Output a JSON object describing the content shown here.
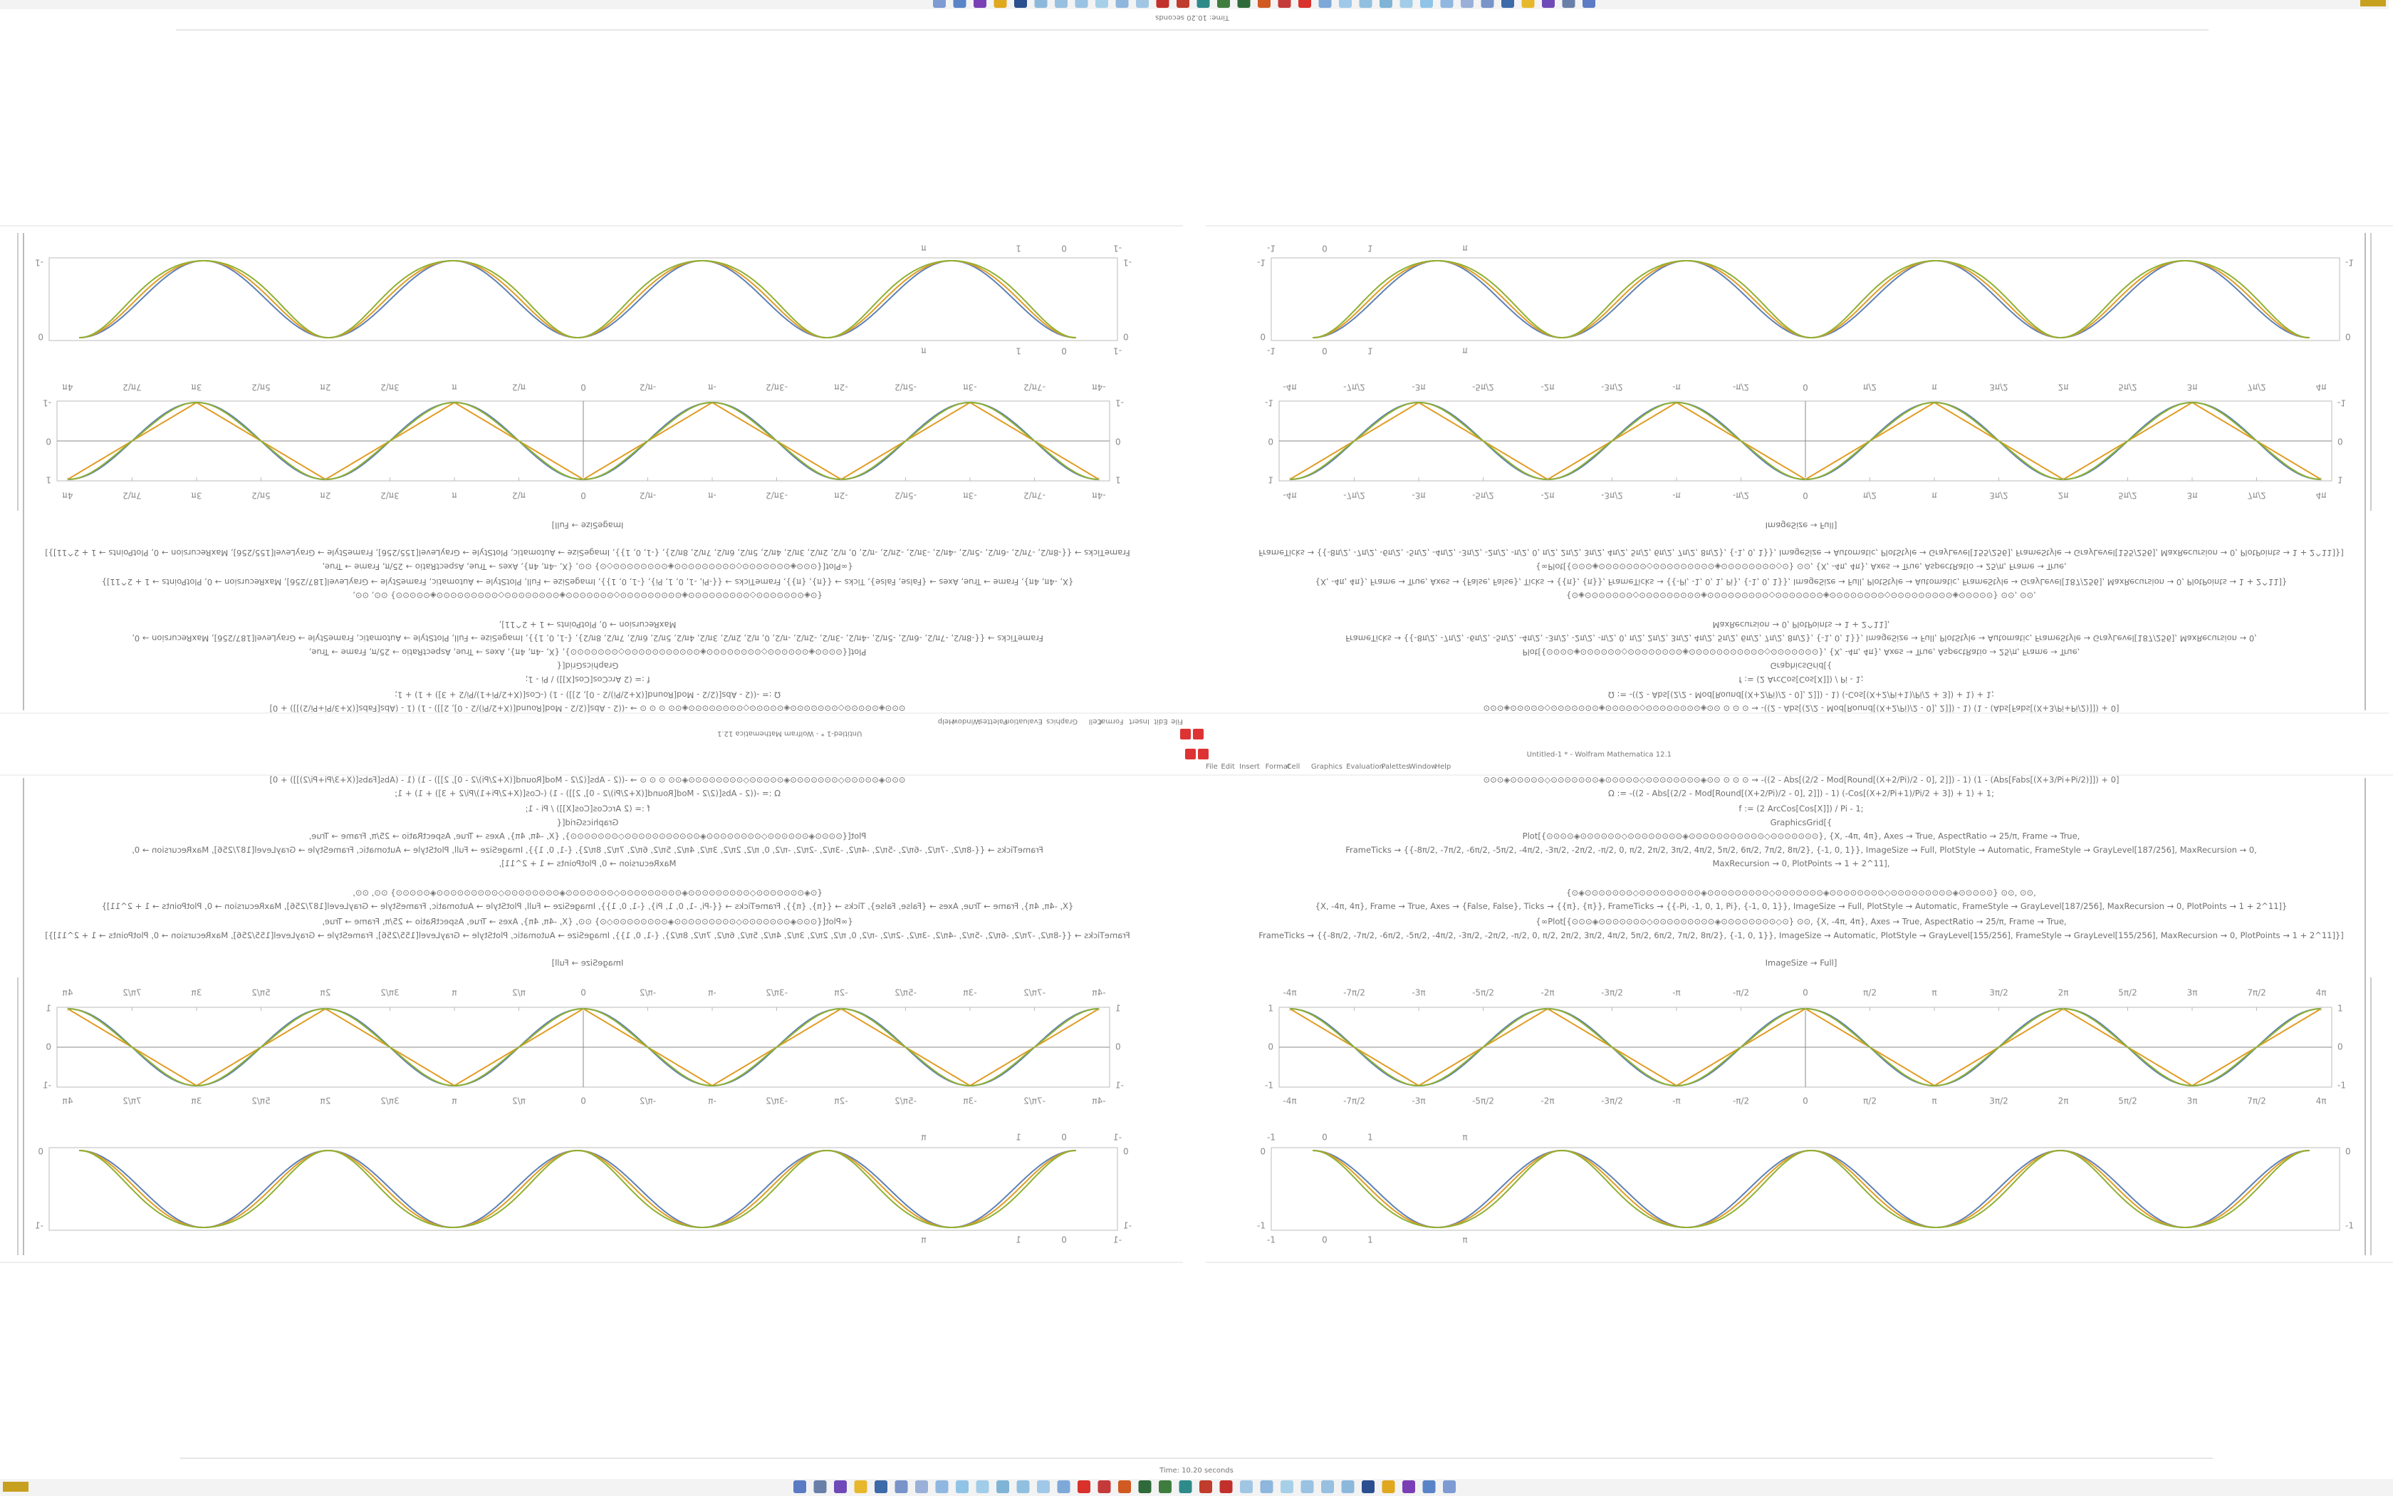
{
  "menu": [
    "File",
    "Edit",
    "Insert",
    "Format",
    "Cell",
    "Graphics",
    "Evaluation",
    "Palettes",
    "Window",
    "Help"
  ],
  "window_title": "Untitled-1 * - Wolfram Mathematica 12.1",
  "status": "Time: 10.20 seconds",
  "notebook": {
    "code_lines": [
      "⊙⊙⊙◈⊙⊙⊙⊙⊙◇⊙⊙⊙⊙⊙⊙⊙◈⊙⊙⊙⊙⊙◇⊙⊙⊙⊙⊙⊙⊙⊙◈⊙⊙ ⊙ ⊙ ⊙ ⇝ -((2 - Abs[(2/2 - Mod[Round[(X+2/Pi)/2 - 0], 2]]) - 1) (1 - (Abs[Fabs[(X+3/Pi+Pi/2)]]) + 0]",
      "Ω := -((2 - Abs[(2/2 - Mod[Round[(X+2/Pi)/2 - 0], 2]]) - 1) (-Cos[(X+2/Pi+1)/Pi/2 + 3]) + 1) + 1;",
      "f := (2 ArcCos[Cos[X]]) / Pi - 1;",
      "GraphicsGrid[{",
      "Plot[{⊙⊙⊙⊙◈⊙⊙⊙⊙⊙⊙◇⊙⊙⊙⊙⊙⊙⊙⊙◈⊙⊙⊙⊙⊙⊙⊙⊙⊙⊙⊙◇⊙⊙⊙⊙⊙⊙⊙}, {X, -4π, 4π}, Axes → True, AspectRatio → 25/π, Frame → True,",
      "FrameTicks → {{-8π/2, -7π/2, -6π/2, -5π/2, -4π/2, -3π/2, -2π/2, -π/2, 0, π/2, 2π/2, 3π/2, 4π/2, 5π/2, 6π/2, 7π/2, 8π/2}, {-1, 0, 1}}, ImageSize → Full, PlotStyle → Automatic, FrameStyle → GrayLevel[187/256], MaxRecursion → 0,",
      "MaxRecursion → 0, PlotPoints → 1 + 2^11],",
      "{⊙◈⊙⊙⊙⊙⊙⊙⊙◇⊙⊙⊙⊙⊙⊙⊙⊙⊙◈⊙⊙⊙⊙⊙⊙⊙⊙⊙◇⊙⊙⊙⊙⊙⊙⊙◈⊙⊙⊙⊙⊙⊙⊙⊙◇⊙⊙⊙⊙⊙⊙⊙⊙⊙◈⊙⊙⊙⊙⊙}    ⊙⊙, ⊙⊙,",
      "{X, -4π, 4π}, Frame → True, Axes → {False, False}, Ticks → {{π}, {π}}, FrameTicks → {{-Pi, -1, 0, 1, Pi}, {-1, 0, 1}}, ImageSize → Full, PlotStyle → Automatic, FrameStyle → GrayLevel[187/256], MaxRecursion → 0, PlotPoints → 1 + 2^11]}",
      "{∞Plot[{⊙⊙⊙◈⊙⊙⊙⊙⊙⊙⊙◇⊙⊙⊙⊙⊙⊙⊙⊙⊙◈⊙⊙⊙⊙⊙⊙⊙⊙◇⊙}   ⊙⊙, {X, -4π, 4π}, Axes → True, AspectRatio → 25/π, Frame → True,",
      "FrameTicks → {{-8π/2, -7π/2, -6π/2, -5π/2, -4π/2, -3π/2, -2π/2, -π/2, 0, π/2, 2π/2, 3π/2, 4π/2, 5π/2, 6π/2, 7π/2, 8π/2}, {-1, 0, 1}}, ImageSize → Automatic, PlotStyle → GrayLevel[155/256], FrameStyle → GrayLevel[155/256], MaxRecursion → 0, PlotPoints → 1 + 2^11]}]",
      "ImageSize → Full]"
    ],
    "plot1": {
      "x_tick_labels": [
        "-4π",
        "-7π/2",
        "-3π",
        "-5π/2",
        "-2π",
        "-3π/2",
        "-π",
        "-π/2",
        "0",
        "π/2",
        "π",
        "3π/2",
        "2π",
        "5π/2",
        "3π",
        "7π/2",
        "4π"
      ],
      "y_tick_labels": [
        "1",
        "0",
        "-1"
      ]
    },
    "plot2": {
      "x_tick_labels": [
        "-1",
        "0",
        "1",
        "π"
      ],
      "y_tick_labels": [
        "0",
        "-1"
      ]
    }
  }
}
